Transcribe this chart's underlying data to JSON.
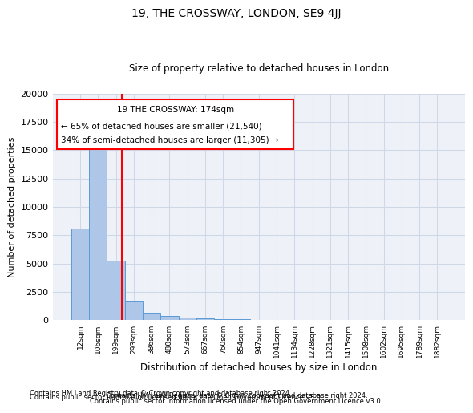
{
  "title": "19, THE CROSSWAY, LONDON, SE9 4JJ",
  "subtitle": "Size of property relative to detached houses in London",
  "xlabel": "Distribution of detached houses by size in London",
  "ylabel": "Number of detached properties",
  "footnote1": "Contains HM Land Registry data © Crown copyright and database right 2024.",
  "footnote2": "Contains public sector information licensed under the Open Government Licence v3.0.",
  "annotation_title": "19 THE CROSSWAY: 174sqm",
  "annotation_line1": "← 65% of detached houses are smaller (21,540)",
  "annotation_line2": "34% of semi-detached houses are larger (11,305) →",
  "bar_color": "#aec6e8",
  "bar_edge_color": "#5b9bd5",
  "vline_color": "red",
  "annotation_box_color": "red",
  "grid_color": "#d0d8e8",
  "background_color": "#eef2f8",
  "categories": [
    "12sqm",
    "106sqm",
    "199sqm",
    "293sqm",
    "386sqm",
    "480sqm",
    "573sqm",
    "667sqm",
    "760sqm",
    "854sqm",
    "947sqm",
    "1041sqm",
    "1134sqm",
    "1228sqm",
    "1321sqm",
    "1415sqm",
    "1508sqm",
    "1602sqm",
    "1695sqm",
    "1789sqm",
    "1882sqm"
  ],
  "values": [
    8100,
    16600,
    5300,
    1750,
    700,
    380,
    230,
    170,
    120,
    80,
    60,
    50,
    40,
    30,
    25,
    20,
    18,
    15,
    12,
    10,
    8
  ],
  "ylim": [
    0,
    20000
  ],
  "vline_x_index": 2.35
}
